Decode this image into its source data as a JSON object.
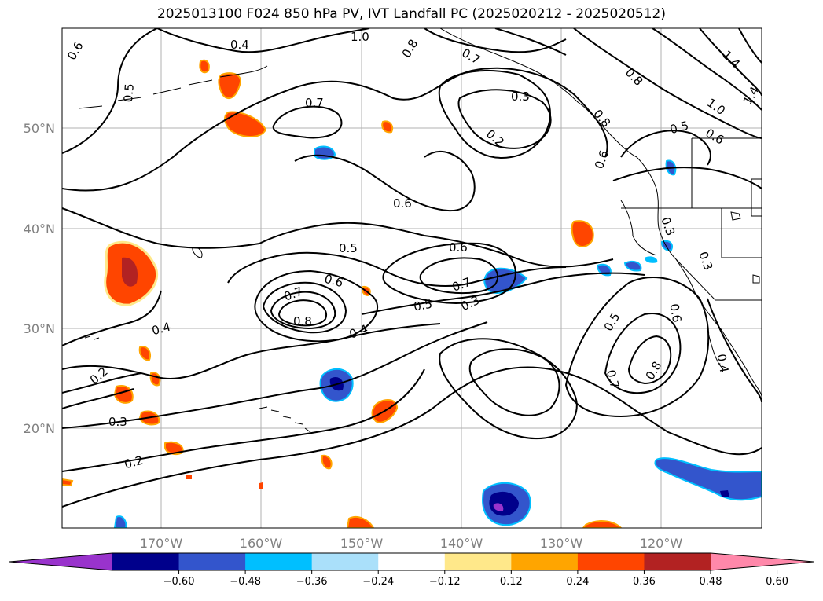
{
  "title": "2025013100 F024 850 hPa PV, IVT Landfall PC (2025020212 - 2025020512)",
  "axes": {
    "lon_labels": [
      "170°W",
      "160°W",
      "150°W",
      "140°W",
      "130°W",
      "120°W"
    ],
    "lat_labels": [
      "50°N",
      "40°N",
      "30°N",
      "20°N"
    ]
  },
  "contour_labels": [
    "0.6",
    "0.4",
    "1.0",
    "0.8",
    "0.7",
    "0.8",
    "1.4",
    "1.4",
    "0.5",
    "0.7",
    "0.3",
    "0.2",
    "1.0",
    "0.8",
    "0.5",
    "0.6",
    "0.6",
    "0.6",
    "0.5",
    "0.6",
    "0.6",
    "0.7",
    "0.7",
    "0.8",
    "0.5",
    "0.3",
    "0.4",
    "0.4",
    "0.2",
    "0.3",
    "0.2",
    "0.3",
    "0.3",
    "0.5",
    "0.6",
    "0.7",
    "0.8",
    "0.4"
  ],
  "colorbar": {
    "ticks": [
      "−0.60",
      "−0.48",
      "−0.36",
      "−0.24",
      "−0.12",
      "0.12",
      "0.24",
      "0.36",
      "0.48",
      "0.60"
    ],
    "colors": [
      "#9933cc",
      "#00008b",
      "#3355cc",
      "#00bfff",
      "#aae0fa",
      "#ffffff",
      "#ffe88a",
      "#ffa500",
      "#ff4500",
      "#b22222",
      "#ff88aa"
    ]
  }
}
